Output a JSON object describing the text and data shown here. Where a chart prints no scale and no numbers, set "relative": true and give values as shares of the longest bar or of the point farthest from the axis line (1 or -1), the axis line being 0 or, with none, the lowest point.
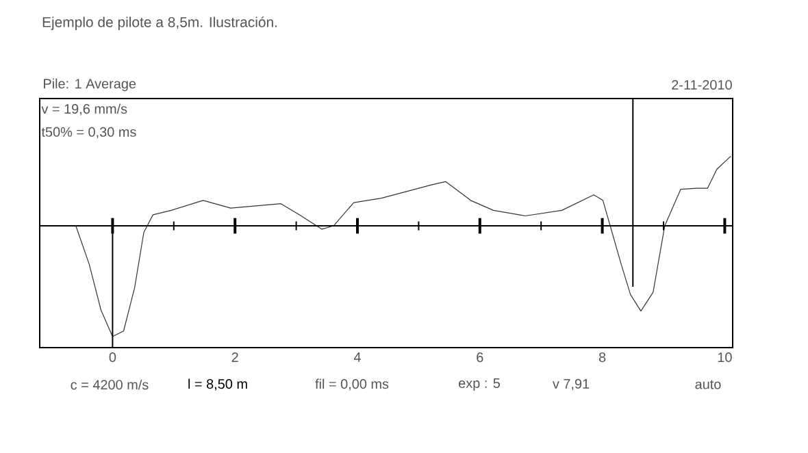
{
  "chart_data": {
    "type": "line",
    "title": "Ejemplo de pilote a 8,5m. Ilustración.",
    "relative": true,
    "x": [
      -1.19,
      -0.6,
      -0.38,
      -0.19,
      0,
      0.18,
      0.36,
      0.51,
      0.66,
      0.96,
      1.48,
      1.93,
      2.75,
      3.05,
      3.42,
      3.61,
      3.94,
      4.39,
      5.21,
      5.44,
      5.85,
      6.22,
      6.74,
      7.34,
      7.86,
      8.01,
      8.16,
      8.31,
      8.46,
      8.63,
      8.83,
      9.02,
      9.28,
      9.54,
      9.72,
      9.87,
      10.1
    ],
    "values": [
      0,
      0,
      -0.35,
      -0.76,
      -1,
      -0.95,
      -0.56,
      -0.06,
      0.1,
      0.14,
      0.23,
      0.16,
      0.2,
      0.1,
      -0.03,
      0,
      0.21,
      0.25,
      0.37,
      0.4,
      0.23,
      0.14,
      0.09,
      0.14,
      0.28,
      0.23,
      -0.06,
      -0.35,
      -0.62,
      -0.77,
      -0.6,
      0,
      0.33,
      0.34,
      0.34,
      0.51,
      0.63
    ],
    "color": "#333333",
    "xlim": [
      -1.19,
      10.13
    ],
    "xticks": [
      0,
      {
        "value": 1,
        "label": null
      },
      2,
      {
        "value": 3,
        "label": null
      },
      4,
      {
        "value": 5,
        "label": null
      },
      6,
      {
        "value": 7,
        "label": null
      },
      8,
      {
        "value": 9,
        "label": null
      },
      10
    ],
    "tick_labels": "x",
    "ref_lines": [
      {
        "axis": "x",
        "value": 0
      },
      {
        "axis": "x",
        "value": 8.5
      }
    ],
    "annotations": [
      "Pile: 1 Average",
      "2-11-2010",
      "v = 19,6 mm/s",
      "t50% = 0,30 ms",
      "c = 4200 m/s",
      "l = 8,50 m",
      "fil = 0,00 ms",
      "exp : 5",
      "v 7,91",
      "auto"
    ]
  }
}
